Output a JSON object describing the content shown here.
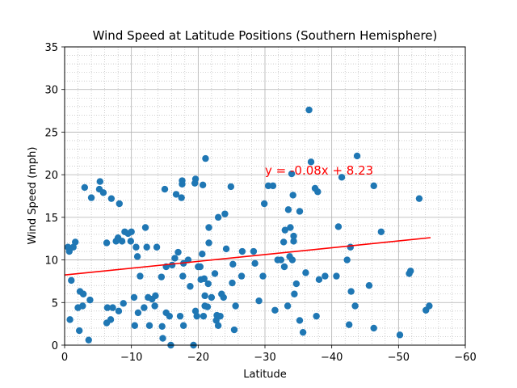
{
  "chart_data": {
    "type": "scatter",
    "title": "Wind Speed at Latitude Positions (Southern Hemisphere)",
    "xlabel": "Latitude",
    "ylabel": "Wind Speed (mph)",
    "xlim": [
      0,
      -60
    ],
    "ylim": [
      0,
      35
    ],
    "x_ticks": [
      0,
      -10,
      -20,
      -30,
      -40,
      -50,
      -60
    ],
    "x_tick_labels": [
      "0",
      "−10",
      "−20",
      "−30",
      "−40",
      "−50",
      "−60"
    ],
    "y_ticks": [
      0,
      5,
      10,
      15,
      20,
      25,
      30,
      35
    ],
    "y_tick_labels": [
      "0",
      "5",
      "10",
      "15",
      "20",
      "25",
      "30",
      "35"
    ],
    "grid": true,
    "minor_grid": true,
    "marker_color": "#1f77b4",
    "line_color": "#ff0000",
    "regression": {
      "equation": "y = -0.08x + 8.23",
      "slope": -0.08,
      "intercept": 8.23,
      "x_range": [
        0,
        -54.8
      ],
      "label_position": [
        -30,
        20
      ]
    },
    "points": [
      [
        -0.5,
        11.5
      ],
      [
        -0.7,
        11.0
      ],
      [
        -0.8,
        3.0
      ],
      [
        -1.0,
        7.6
      ],
      [
        -1.3,
        11.5
      ],
      [
        -1.6,
        12.1
      ],
      [
        -2.0,
        4.4
      ],
      [
        -2.2,
        1.7
      ],
      [
        -2.3,
        6.3
      ],
      [
        -2.7,
        4.6
      ],
      [
        -2.8,
        6.0
      ],
      [
        -3.0,
        18.5
      ],
      [
        -3.6,
        0.6
      ],
      [
        -3.8,
        5.3
      ],
      [
        -4.0,
        17.3
      ],
      [
        -5.2,
        18.3
      ],
      [
        -5.3,
        19.2
      ],
      [
        -5.8,
        17.9
      ],
      [
        -6.3,
        12.0
      ],
      [
        -6.3,
        2.6
      ],
      [
        -6.4,
        4.4
      ],
      [
        -6.9,
        3.0
      ],
      [
        -7.0,
        17.2
      ],
      [
        -7.2,
        4.4
      ],
      [
        -7.7,
        12.2
      ],
      [
        -8.0,
        12.6
      ],
      [
        -8.1,
        4.0
      ],
      [
        -8.2,
        16.6
      ],
      [
        -8.6,
        12.2
      ],
      [
        -8.8,
        4.9
      ],
      [
        -9.0,
        13.3
      ],
      [
        -9.5,
        13.1
      ],
      [
        -9.9,
        12.2
      ],
      [
        -10.0,
        13.3
      ],
      [
        -10.4,
        5.6
      ],
      [
        -10.5,
        2.3
      ],
      [
        -10.7,
        11.5
      ],
      [
        -10.9,
        10.4
      ],
      [
        -11.0,
        3.8
      ],
      [
        -11.3,
        8.1
      ],
      [
        -11.9,
        4.4
      ],
      [
        -12.1,
        13.8
      ],
      [
        -12.3,
        11.5
      ],
      [
        -12.5,
        5.6
      ],
      [
        -12.7,
        2.3
      ],
      [
        -13.1,
        5.4
      ],
      [
        -13.5,
        4.6
      ],
      [
        -13.6,
        5.8
      ],
      [
        -13.8,
        11.5
      ],
      [
        -14.5,
        8.0
      ],
      [
        -14.6,
        2.2
      ],
      [
        -14.7,
        0.8
      ],
      [
        -15.0,
        18.3
      ],
      [
        -15.2,
        9.2
      ],
      [
        -15.2,
        3.8
      ],
      [
        -15.7,
        3.4
      ],
      [
        -15.9,
        0.0
      ],
      [
        -16.1,
        9.4
      ],
      [
        -16.5,
        10.2
      ],
      [
        -16.7,
        17.7
      ],
      [
        -17.0,
        10.9
      ],
      [
        -17.3,
        3.4
      ],
      [
        -17.5,
        17.3
      ],
      [
        -17.6,
        18.9
      ],
      [
        -17.6,
        19.3
      ],
      [
        -17.7,
        8.1
      ],
      [
        -17.8,
        9.6
      ],
      [
        -17.8,
        2.3
      ],
      [
        -18.5,
        10.0
      ],
      [
        -18.8,
        6.9
      ],
      [
        -19.3,
        0.0
      ],
      [
        -19.5,
        19.0
      ],
      [
        -19.6,
        19.5
      ],
      [
        -19.6,
        4.0
      ],
      [
        -19.8,
        3.4
      ],
      [
        -20.0,
        9.2
      ],
      [
        -20.3,
        9.2
      ],
      [
        -20.4,
        7.7
      ],
      [
        -20.6,
        10.7
      ],
      [
        -20.7,
        18.8
      ],
      [
        -20.8,
        3.4
      ],
      [
        -20.9,
        7.8
      ],
      [
        -21.0,
        4.6
      ],
      [
        -21.0,
        5.8
      ],
      [
        -21.1,
        21.9
      ],
      [
        -21.4,
        4.5
      ],
      [
        -21.5,
        7.2
      ],
      [
        -21.6,
        13.8
      ],
      [
        -21.6,
        12.0
      ],
      [
        -22.0,
        5.6
      ],
      [
        -22.5,
        8.4
      ],
      [
        -22.7,
        2.9
      ],
      [
        -22.8,
        3.5
      ],
      [
        -23.0,
        2.3
      ],
      [
        -23.0,
        15.0
      ],
      [
        -23.3,
        3.4
      ],
      [
        -23.5,
        6.0
      ],
      [
        -23.8,
        5.6
      ],
      [
        -24.0,
        15.4
      ],
      [
        -24.2,
        11.3
      ],
      [
        -24.9,
        18.6
      ],
      [
        -25.1,
        7.3
      ],
      [
        -25.2,
        9.5
      ],
      [
        -25.4,
        1.8
      ],
      [
        -25.6,
        4.6
      ],
      [
        -26.5,
        8.1
      ],
      [
        -26.6,
        11.0
      ],
      [
        -28.3,
        11.0
      ],
      [
        -28.5,
        9.6
      ],
      [
        -29.1,
        5.2
      ],
      [
        -29.7,
        8.1
      ],
      [
        -29.9,
        16.6
      ],
      [
        -30.5,
        18.7
      ],
      [
        -31.2,
        18.7
      ],
      [
        -31.5,
        4.1
      ],
      [
        -31.9,
        10.0
      ],
      [
        -32.4,
        10.0
      ],
      [
        -32.8,
        12.1
      ],
      [
        -32.9,
        9.2
      ],
      [
        -33.0,
        13.5
      ],
      [
        -33.4,
        4.6
      ],
      [
        -33.5,
        15.9
      ],
      [
        -33.7,
        10.4
      ],
      [
        -33.8,
        13.8
      ],
      [
        -34.0,
        20.1
      ],
      [
        -34.1,
        10.0
      ],
      [
        -34.2,
        17.6
      ],
      [
        -34.3,
        12.8
      ],
      [
        -34.3,
        12.2
      ],
      [
        -34.4,
        6.0
      ],
      [
        -34.7,
        7.2
      ],
      [
        -35.2,
        2.9
      ],
      [
        -35.2,
        15.7
      ],
      [
        -35.7,
        1.5
      ],
      [
        -36.1,
        8.5
      ],
      [
        -36.6,
        27.6
      ],
      [
        -36.9,
        21.5
      ],
      [
        -37.5,
        18.4
      ],
      [
        -37.7,
        3.4
      ],
      [
        -37.9,
        18.0
      ],
      [
        -38.1,
        7.7
      ],
      [
        -39.0,
        8.1
      ],
      [
        -40.7,
        8.1
      ],
      [
        -41.0,
        13.9
      ],
      [
        -41.5,
        19.7
      ],
      [
        -42.3,
        10.0
      ],
      [
        -42.6,
        2.4
      ],
      [
        -42.8,
        11.5
      ],
      [
        -42.9,
        6.3
      ],
      [
        -43.5,
        4.6
      ],
      [
        -43.8,
        22.2
      ],
      [
        -45.6,
        7.0
      ],
      [
        -46.3,
        18.7
      ],
      [
        -46.3,
        2.0
      ],
      [
        -47.4,
        13.3
      ],
      [
        -50.2,
        1.2
      ],
      [
        -51.6,
        8.4
      ],
      [
        -51.8,
        8.7
      ],
      [
        -53.1,
        17.2
      ],
      [
        -54.1,
        4.1
      ],
      [
        -54.6,
        4.6
      ]
    ]
  }
}
